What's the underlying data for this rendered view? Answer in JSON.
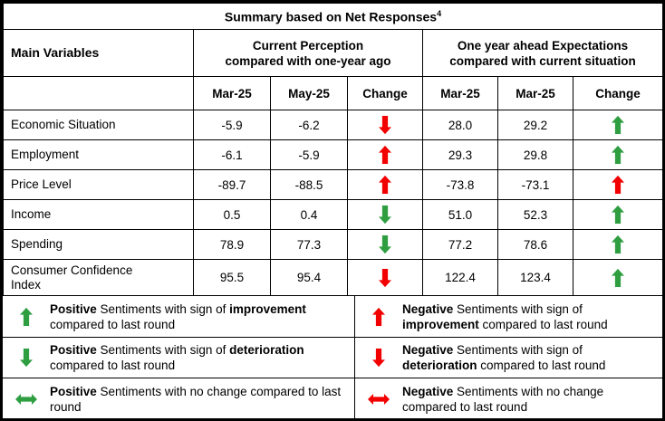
{
  "title": {
    "text": "Summary based on Net Responses",
    "superscript": "4"
  },
  "header": {
    "main_variables": "Main Variables",
    "group1_line1": "Current Perception",
    "group1_line2": "compared with one-year ago",
    "group2_line1": "One year ahead Expectations",
    "group2_line2": "compared with current situation",
    "sub": {
      "c1": "Mar-25",
      "c2": "May-25",
      "c3": "Change",
      "c4": "Mar-25",
      "c5": "Mar-25",
      "c6": "Change"
    }
  },
  "rows": [
    {
      "label": "Economic Situation",
      "v1": "-5.9",
      "v2": "-6.2",
      "change1": "red-down",
      "v3": "28.0",
      "v4": "29.2",
      "change2": "green-up"
    },
    {
      "label": "Employment",
      "v1": "-6.1",
      "v2": "-5.9",
      "change1": "red-up",
      "v3": "29.3",
      "v4": "29.8",
      "change2": "green-up"
    },
    {
      "label": "Price Level",
      "v1": "-89.7",
      "v2": "-88.5",
      "change1": "red-up",
      "v3": "-73.8",
      "v4": "-73.1",
      "change2": "red-up"
    },
    {
      "label": "Income",
      "v1": "0.5",
      "v2": "0.4",
      "change1": "green-down",
      "v3": "51.0",
      "v4": "52.3",
      "change2": "green-up"
    },
    {
      "label": "Spending",
      "v1": "78.9",
      "v2": "77.3",
      "change1": "green-down",
      "v3": "77.2",
      "v4": "78.6",
      "change2": "green-up"
    },
    {
      "label": "Consumer Confidence Index",
      "v1": "95.5",
      "v2": "95.4",
      "change1": "red-down",
      "v3": "122.4",
      "v4": "123.4",
      "change2": "green-up"
    }
  ],
  "legend": [
    {
      "left": {
        "arrow": "green-up",
        "s0": "Positive",
        "s1": " Sentiments with sign of ",
        "s2": "improvement",
        "s3": " compared to last round"
      },
      "right": {
        "arrow": "red-up",
        "s0": "Negative",
        "s1": " Sentiments with sign of ",
        "s2": "improvement",
        "s3": " compared to last round"
      }
    },
    {
      "left": {
        "arrow": "green-down",
        "s0": "Positive",
        "s1": " Sentiments with sign of ",
        "s2": "deterioration",
        "s3": " compared to last round"
      },
      "right": {
        "arrow": "red-down",
        "s0": "Negative",
        "s1": " Sentiments with sign of ",
        "s2": "deterioration",
        "s3": " compared to last round"
      }
    },
    {
      "left": {
        "arrow": "green-leftright",
        "s0": "Positive",
        "s1": " Sentiments with no change compared to last round"
      },
      "right": {
        "arrow": "red-leftright",
        "s0": "Negative",
        "s1": " Sentiments with no change compared to last round"
      }
    }
  ],
  "colors": {
    "positive_green": "#2f9e41",
    "negative_red": "#f20000",
    "border": "#000000",
    "background": "#ffffff"
  }
}
